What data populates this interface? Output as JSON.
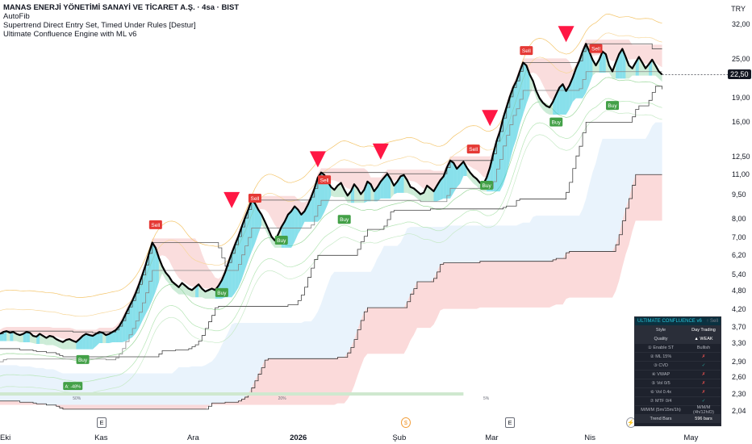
{
  "legend": {
    "title": "MANAS ENERJİ YÖNETİMİ SANAYİ VE TİCARET A.Ş. · 4sa · BIST",
    "line1": "AutoFib",
    "line2": "Supertrend Direct Entry Set, Timed Under Rules [Destur]",
    "line3": "Ultimate Confluence Engine with ML v6"
  },
  "currency": "TRY",
  "last_price": "22,50",
  "chart_data": {
    "type": "line",
    "title": "MANAS ENERJİ YÖNETİMİ SANAYİ VE TİCARET A.Ş. · 4sa · BIST",
    "xlabel": "",
    "ylabel": "",
    "log_scale": true,
    "ylim": [
      2.04,
      32.0
    ],
    "y_ticks": [
      "32,00",
      "25,00",
      "19,00",
      "16,00",
      "12,50",
      "11,00",
      "9,50",
      "8,00",
      "7,00",
      "6,20",
      "5,40",
      "4,80",
      "4,20",
      "3,70",
      "3,30",
      "2,90",
      "2,60",
      "2,30",
      "2,04"
    ],
    "y_tick_values": [
      32.0,
      25.0,
      19.0,
      16.0,
      12.5,
      11.0,
      9.5,
      8.0,
      7.0,
      6.2,
      5.4,
      4.8,
      4.2,
      3.7,
      3.3,
      2.9,
      2.6,
      2.3,
      2.04
    ],
    "x_ticks": [
      "Eki",
      "Kas",
      "Ara",
      "2026",
      "Şub",
      "Mar",
      "Nis",
      "May"
    ],
    "x_tick_index": [
      0,
      30,
      58,
      89,
      120,
      148,
      178,
      208
    ],
    "x_max_index": 214,
    "series": [
      {
        "values": [
          3.55,
          3.6,
          3.62,
          3.58,
          3.6,
          3.55,
          3.52,
          3.55,
          3.6,
          3.58,
          3.5,
          3.48,
          3.55,
          3.5,
          3.45,
          3.5,
          3.48,
          3.42,
          3.38,
          3.35,
          3.4,
          3.42,
          3.38,
          3.35,
          3.42,
          3.5,
          3.55,
          3.52,
          3.5,
          3.55,
          3.6,
          3.58,
          3.52,
          3.55,
          3.6,
          3.65,
          3.75,
          3.9,
          4.1,
          4.3,
          4.5,
          4.75,
          5.05,
          5.4,
          5.8,
          6.3,
          6.8,
          6.55,
          6.1,
          5.75,
          5.5,
          5.35,
          5.15,
          5.05,
          4.95,
          5.1,
          5.0,
          4.9,
          4.85,
          4.95,
          5.05,
          4.9,
          4.8,
          4.85,
          4.9,
          4.85,
          5.0,
          5.2,
          5.5,
          5.9,
          6.3,
          6.7,
          7.1,
          7.6,
          8.1,
          8.6,
          9.2,
          9.0,
          8.6,
          8.3,
          7.9,
          7.5,
          7.1,
          6.9,
          7.2,
          7.6,
          7.9,
          8.3,
          8.5,
          8.8,
          8.6,
          8.3,
          8.5,
          8.9,
          9.4,
          10.0,
          10.8,
          11.2,
          11.0,
          10.5,
          10.1,
          9.9,
          10.2,
          10.4,
          9.9,
          9.5,
          9.8,
          10.3,
          10.0,
          9.6,
          9.9,
          10.5,
          10.3,
          9.8,
          10.1,
          10.5,
          10.8,
          11.1,
          10.7,
          10.2,
          10.5,
          10.9,
          11.0,
          10.6,
          10.1,
          10.0,
          9.8,
          9.6,
          9.7,
          10.2,
          10.0,
          9.8,
          10.2,
          10.6,
          10.9,
          11.6,
          12.2,
          12.0,
          11.5,
          11.8,
          12.1,
          11.6,
          11.2,
          10.9,
          10.7,
          10.4,
          10.3,
          10.8,
          11.6,
          12.8,
          14.0,
          15.0,
          16.5,
          17.8,
          19.2,
          20.5,
          21.5,
          23.0,
          24.5,
          24.0,
          22.5,
          21.5,
          20.0,
          19.0,
          18.4,
          18.0,
          17.8,
          18.5,
          19.5,
          20.5,
          21.0,
          20.0,
          20.8,
          22.0,
          23.5,
          24.8,
          26.5,
          28.0,
          26.5,
          25.0,
          24.0,
          25.0,
          26.5,
          26.0,
          24.0,
          23.0,
          24.5,
          26.0,
          27.0,
          25.5,
          24.0,
          23.5,
          24.5,
          25.5,
          24.5,
          23.5,
          24.2,
          25.0,
          24.0,
          23.0,
          22.5
        ]
      }
    ],
    "annotations": [
      {
        "label": "Sell",
        "i": 47,
        "y": 7.7,
        "type": "sell"
      },
      {
        "label": "Buy",
        "i": 25,
        "y": 2.95,
        "type": "buy"
      },
      {
        "label": "Sell",
        "i": 77,
        "y": 9.3,
        "type": "sell"
      },
      {
        "label": "Buy",
        "i": 67,
        "y": 4.75,
        "type": "buy"
      },
      {
        "label": "Buy",
        "i": 85,
        "y": 6.9,
        "type": "buy"
      },
      {
        "label": "Sell",
        "i": 98,
        "y": 10.6,
        "type": "sell"
      },
      {
        "label": "Buy",
        "i": 104,
        "y": 8.0,
        "type": "buy"
      },
      {
        "label": "Sell",
        "i": 143,
        "y": 13.2,
        "type": "sell"
      },
      {
        "label": "Buy",
        "i": 147,
        "y": 10.2,
        "type": "buy"
      },
      {
        "label": "Sell",
        "i": 159,
        "y": 26.6,
        "type": "sell"
      },
      {
        "label": "Buy",
        "i": 168,
        "y": 16.0,
        "type": "buy"
      },
      {
        "label": "Sell",
        "i": 180,
        "y": 27.0,
        "type": "sell"
      },
      {
        "label": "Buy",
        "i": 185,
        "y": 18.0,
        "type": "buy"
      }
    ],
    "triangles": [
      {
        "i": 70,
        "y": 9.2
      },
      {
        "i": 96,
        "y": 12.3
      },
      {
        "i": 115,
        "y": 13.0
      },
      {
        "i": 148,
        "y": 16.5
      },
      {
        "i": 171,
        "y": 30.0
      }
    ],
    "flag": {
      "label": "A: -48%",
      "i": 22,
      "y": 2.45
    },
    "fib_pcts": [
      {
        "label": "50%",
        "i": 22
      },
      {
        "label": "20%",
        "i": 84
      },
      {
        "label": "5%",
        "i": 146
      }
    ],
    "colors": {
      "price": "#000000",
      "up": "#26c6da",
      "down": "#ef5350",
      "sell": "#e53935",
      "buy": "#43a047",
      "bear_zone": "#fbd6d6",
      "bull_zone": "#e3f0fb"
    }
  },
  "events": [
    {
      "label": "E",
      "kind": "earn",
      "x": 120
    },
    {
      "label": "$",
      "kind": "div",
      "x": 497
    },
    {
      "label": "E",
      "kind": "earn",
      "x": 626
    },
    {
      "label": "⚡",
      "kind": "flash",
      "x": 776
    }
  ],
  "panel": {
    "header": "ULTIMATE CONFLUENCE v6",
    "header_right": "↑ Sell",
    "rows": [
      {
        "k": "Style",
        "v": "Day Trading",
        "c": "white",
        "hl": true
      },
      {
        "k": "Quality",
        "v": "▲ WEAK",
        "c": "white",
        "hl": true
      },
      {
        "k": "① Enable ST",
        "v": "Bullish",
        "c": ""
      },
      {
        "k": "② ML 15%",
        "v": "✗",
        "c": "red"
      },
      {
        "k": "③ CVD",
        "v": "✓",
        "c": "green"
      },
      {
        "k": "④ VWAP",
        "v": "✗",
        "c": "red"
      },
      {
        "k": "⑤ Vol 0/5",
        "v": "✗",
        "c": "red"
      },
      {
        "k": "⑥ Vol 0.4x",
        "v": "✗",
        "c": "red"
      },
      {
        "k": "⑦ MTF 0/4",
        "v": "✓",
        "c": "green"
      },
      {
        "k": "M/M/M (5m/15m/1h)",
        "v": "M/M/M (4h/12h/D)",
        "c": ""
      },
      {
        "k": "Trend Bars",
        "v": "596 bars",
        "c": "white",
        "hl": true
      }
    ]
  }
}
